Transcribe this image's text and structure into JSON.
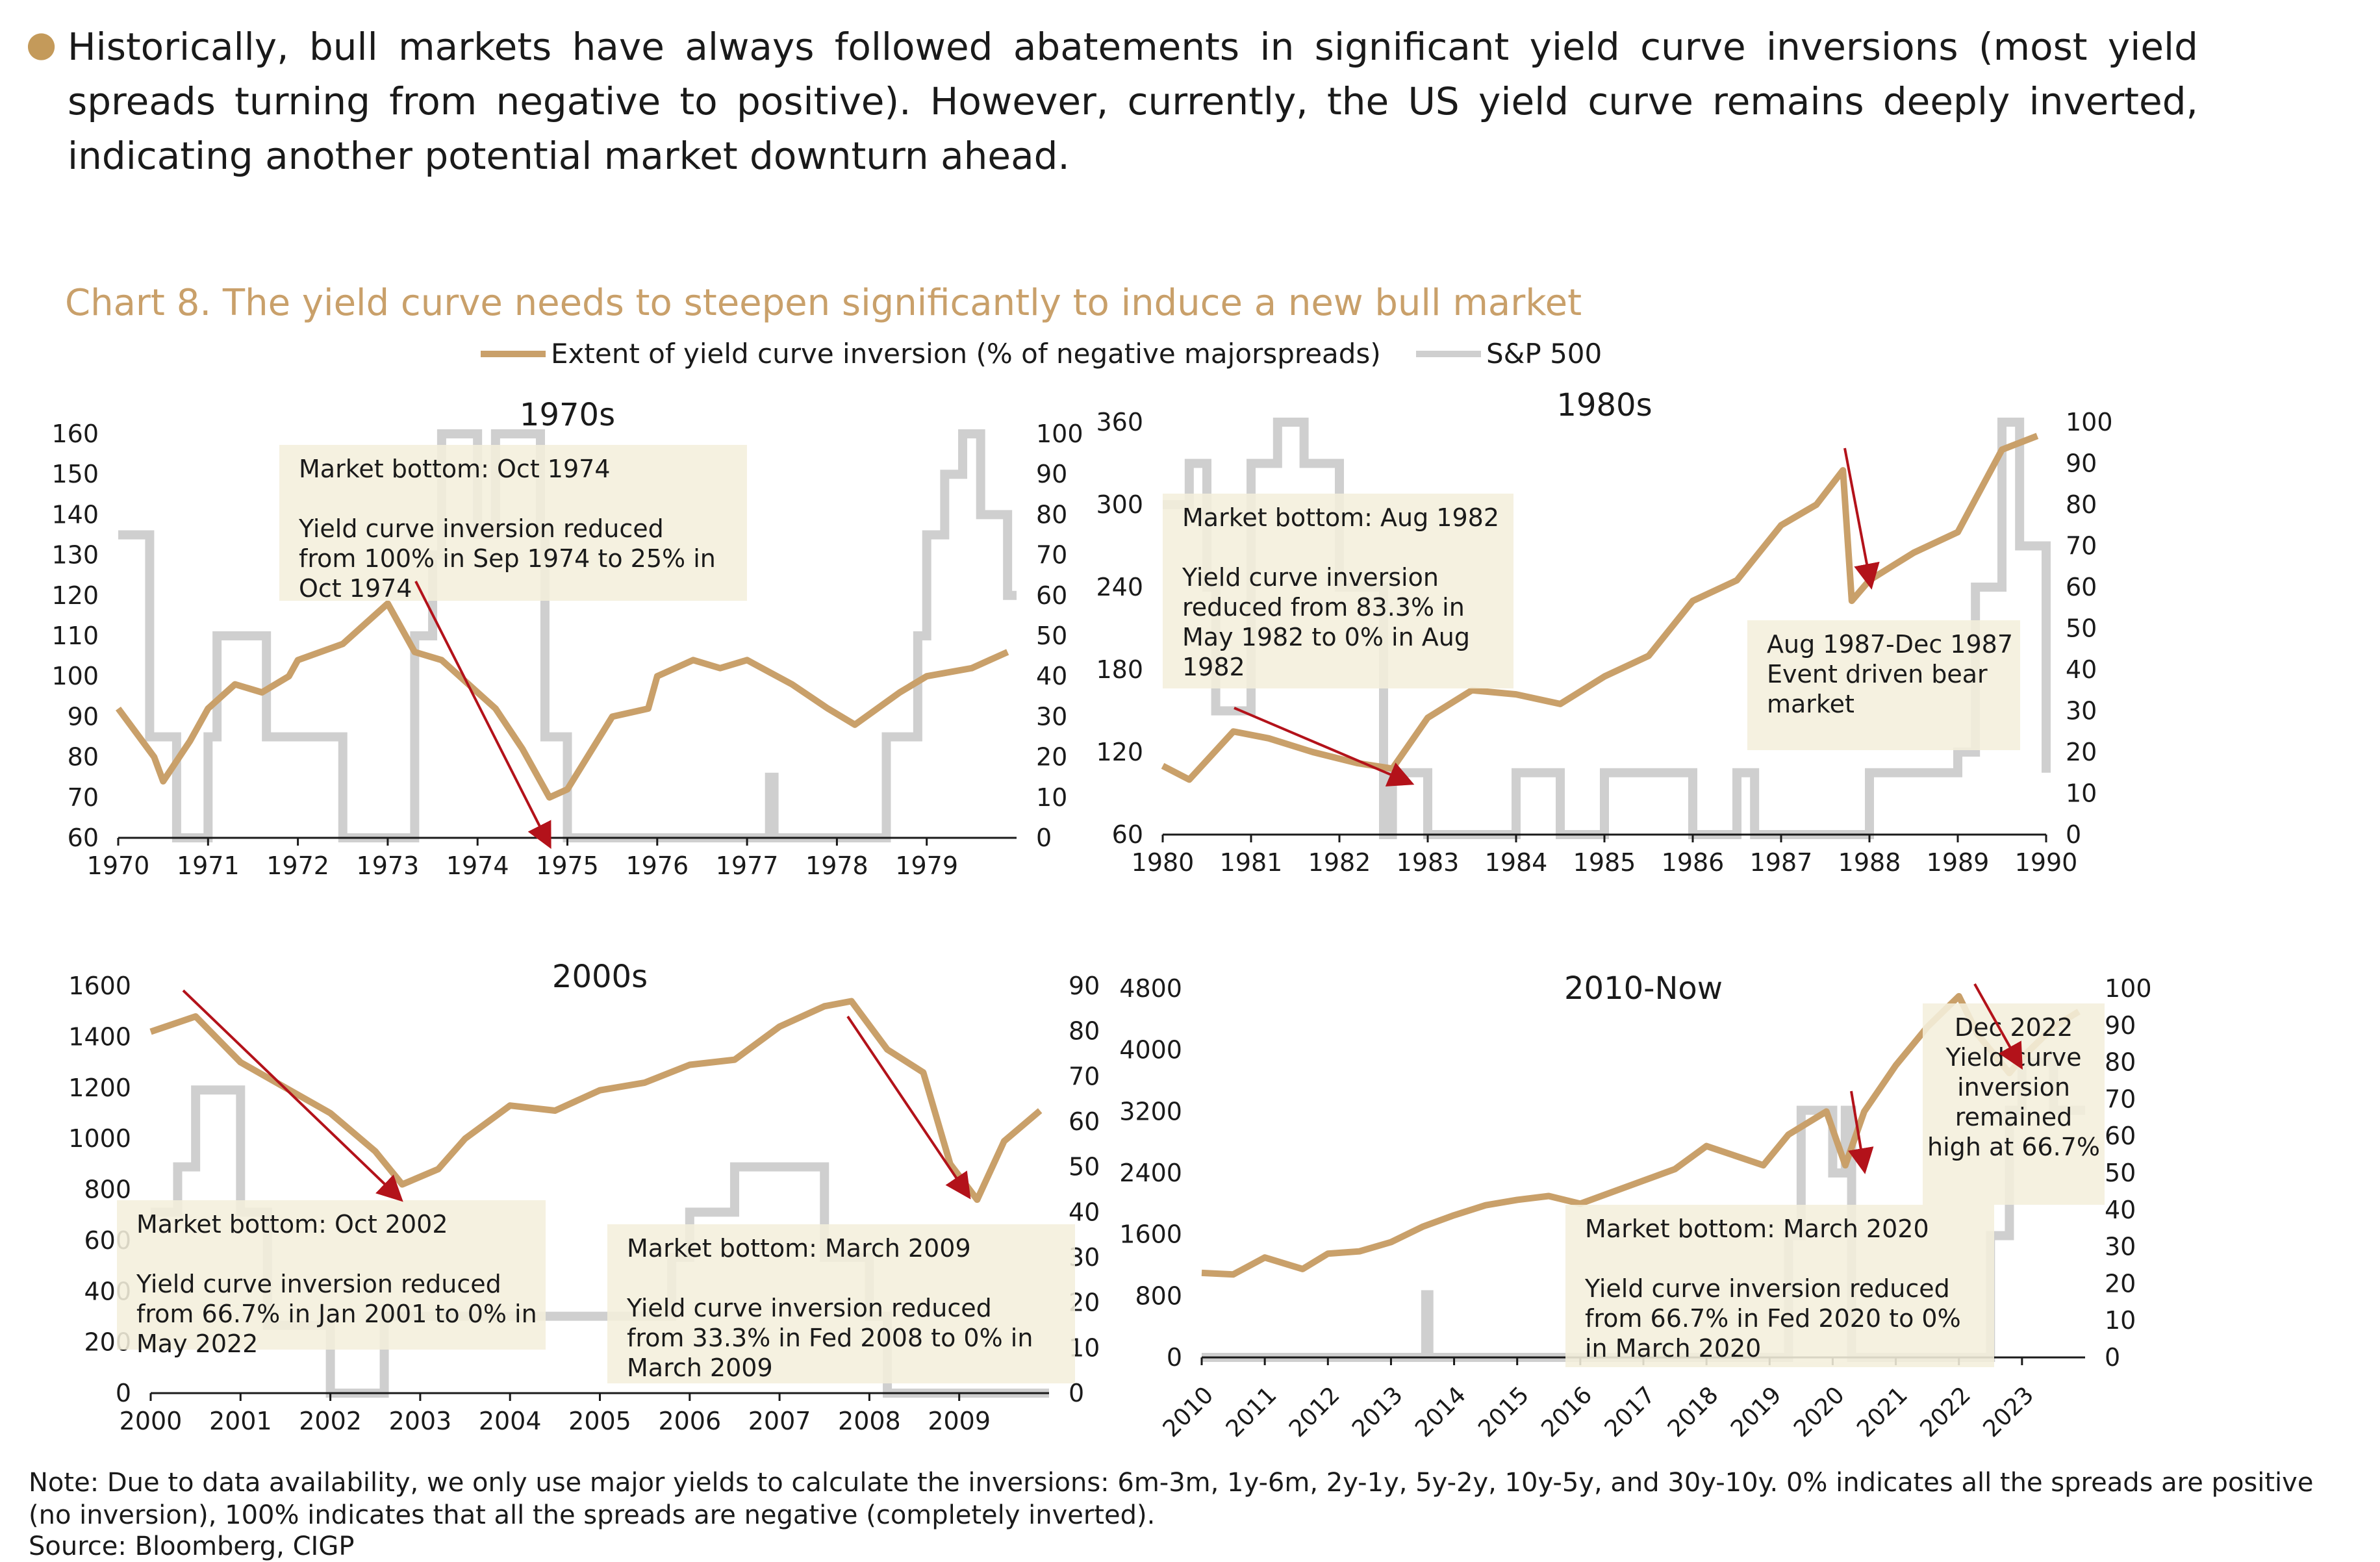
{
  "bullet": "Historically, bull markets have always followed abatements in significant yield curve inversions (most yield spreads turning from negative to positive). However, currently, the US yield curve remains deeply inverted, indicating another potential market downturn ahead.",
  "chart_title": "Chart 8. The yield curve needs to steepen significantly to induce a new bull market",
  "legend": {
    "yield_label": "Extent of yield curve inversion (% of negative majorspreads)",
    "sp_label": "S&P 500",
    "yield_color": "#c9a06a",
    "sp_color": "#cfcfcf"
  },
  "colors": {
    "annotation_bg": "#f4efdc",
    "arrow": "#b3121a",
    "axis": "#1a1a1a"
  },
  "note": "Note: Due to data availability, we only use major yields to calculate the inversions: 6m-3m, 1y-6m, 2y-1y, 5y-2y, 10y-5y, and 30y-10y. 0% indicates all the spreads are positive (no inversion), 100% indicates that all the spreads are negative (completely inverted).",
  "source": "Source: Bloomberg, CIGP",
  "chart_data": [
    {
      "type": "line",
      "title": "1970s",
      "x_tick_labels": [
        "1970",
        "1971",
        "1972",
        "1973",
        "1974",
        "1975",
        "1976",
        "1977",
        "1978",
        "1979"
      ],
      "xlim": [
        1970,
        1980
      ],
      "y_left": {
        "min": 60,
        "max": 160,
        "step": 10
      },
      "y_right": {
        "min": 0,
        "max": 100,
        "step": 10
      },
      "sp500": {
        "axis": "left",
        "x": [
          1970,
          1970.4,
          1970.5,
          1970.8,
          1971,
          1971.3,
          1971.6,
          1971.9,
          1972,
          1972.5,
          1973,
          1973.3,
          1973.6,
          1973.9,
          1974.2,
          1974.5,
          1974.8,
          1975,
          1975.5,
          1975.9,
          1976,
          1976.4,
          1976.7,
          1977,
          1977.5,
          1977.9,
          1978.2,
          1978.7,
          1979,
          1979.5,
          1979.9
        ],
        "values": [
          92,
          80,
          74,
          84,
          92,
          98,
          96,
          100,
          104,
          108,
          118,
          106,
          104,
          98,
          92,
          82,
          70,
          72,
          90,
          92,
          100,
          104,
          102,
          104,
          98,
          92,
          88,
          96,
          100,
          102,
          106
        ]
      },
      "inversion": {
        "axis": "right",
        "x": [
          1970,
          1970.3,
          1970.35,
          1970.6,
          1970.65,
          1971,
          1971.1,
          1971.6,
          1971.65,
          1972,
          1972.5,
          1973,
          1973.3,
          1973.5,
          1973.6,
          1974.0,
          1974.2,
          1974.7,
          1974.75,
          1975,
          1977.2,
          1977.25,
          1977.3,
          1978.5,
          1978.55,
          1978.9,
          1979.0,
          1979.2,
          1979.4,
          1979.6,
          1979.9
        ],
        "values": [
          75,
          75,
          25,
          25,
          0,
          25,
          50,
          50,
          25,
          25,
          0,
          0,
          50,
          70,
          100,
          75,
          100,
          75,
          25,
          0,
          0,
          15,
          0,
          0,
          25,
          50,
          75,
          90,
          100,
          80,
          60
        ]
      },
      "annotations": [
        {
          "lines": [
            "Market bottom: Oct 1974",
            "",
            "Yield curve inversion reduced",
            "from 100% in Sep 1974 to 25% in",
            "Oct 1974"
          ]
        }
      ]
    },
    {
      "type": "line",
      "title": "1980s",
      "x_tick_labels": [
        "1980",
        "1981",
        "1982",
        "1983",
        "1984",
        "1985",
        "1986",
        "1987",
        "1988",
        "1989",
        "1990"
      ],
      "xlim": [
        1980,
        1990
      ],
      "y_left": {
        "min": 60,
        "max": 360,
        "step": 60
      },
      "y_right": {
        "min": 0,
        "max": 100,
        "step": 10
      },
      "sp500": {
        "axis": "left",
        "x": [
          1980,
          1980.3,
          1980.8,
          1981.2,
          1981.7,
          1982.2,
          1982.6,
          1983,
          1983.5,
          1984,
          1984.5,
          1985,
          1985.5,
          1986,
          1986.5,
          1987,
          1987.4,
          1987.7,
          1987.8,
          1988,
          1988.5,
          1989,
          1989.5,
          1989.9
        ],
        "values": [
          110,
          100,
          135,
          130,
          120,
          112,
          108,
          145,
          165,
          162,
          155,
          175,
          190,
          230,
          245,
          285,
          300,
          325,
          230,
          245,
          265,
          280,
          340,
          350
        ]
      },
      "inversion": {
        "axis": "right",
        "x": [
          1980,
          1980.3,
          1980.5,
          1980.6,
          1981,
          1981.3,
          1981.6,
          1982,
          1982.5,
          1982.6,
          1983,
          1984,
          1984.5,
          1985,
          1986,
          1986.5,
          1986.7,
          1987,
          1988,
          1989,
          1989.2,
          1989.5,
          1989.7,
          1990
        ],
        "values": [
          80,
          90,
          60,
          30,
          90,
          100,
          90,
          60,
          0,
          15,
          0,
          15,
          0,
          15,
          0,
          15,
          0,
          0,
          15,
          20,
          60,
          100,
          70,
          15
        ]
      },
      "annotations": [
        {
          "lines": [
            "Market bottom: Aug 1982",
            "",
            "Yield curve inversion",
            "reduced from 83.3% in",
            "May 1982 to 0% in Aug",
            "1982"
          ]
        },
        {
          "lines": [
            "Aug 1987-Dec 1987",
            "Event driven bear",
            "market"
          ]
        }
      ]
    },
    {
      "type": "line",
      "title": "2000s",
      "x_tick_labels": [
        "2000",
        "2001",
        "2002",
        "2003",
        "2004",
        "2005",
        "2006",
        "2007",
        "2008",
        "2009"
      ],
      "xlim": [
        2000,
        2010
      ],
      "y_left": {
        "min": 0,
        "max": 1600,
        "step": 200
      },
      "y_right": {
        "min": 0,
        "max": 90,
        "step": 10
      },
      "sp500": {
        "axis": "left",
        "x": [
          2000,
          2000.5,
          2001,
          2001.5,
          2002,
          2002.5,
          2002.8,
          2003.2,
          2003.5,
          2004,
          2004.5,
          2005,
          2005.5,
          2006,
          2006.5,
          2007,
          2007.5,
          2007.8,
          2008.2,
          2008.6,
          2008.9,
          2009.2,
          2009.5,
          2009.9
        ],
        "values": [
          1420,
          1480,
          1300,
          1200,
          1100,
          950,
          820,
          880,
          1000,
          1130,
          1110,
          1190,
          1220,
          1290,
          1310,
          1440,
          1520,
          1540,
          1350,
          1260,
          900,
          760,
          990,
          1110
        ]
      },
      "inversion": {
        "axis": "right",
        "x": [
          2000,
          2000.3,
          2000.5,
          2000.8,
          2001,
          2001.3,
          2002,
          2002.5,
          2002.6,
          2005,
          2005.8,
          2006,
          2006.5,
          2007,
          2007.5,
          2008,
          2008.2,
          2010
        ],
        "values": [
          40,
          50,
          67,
          67,
          40,
          15,
          0,
          0,
          17,
          17,
          30,
          40,
          50,
          50,
          30,
          17,
          0,
          0
        ]
      },
      "annotations": [
        {
          "lines": [
            "Market bottom: Oct 2002",
            "",
            "Yield curve inversion reduced",
            "from 66.7% in Jan 2001 to 0% in",
            "May 2022"
          ]
        },
        {
          "lines": [
            "Market bottom: March 2009",
            "",
            "Yield curve inversion reduced",
            "from 33.3% in Fed 2008 to 0% in",
            "March 2009"
          ]
        }
      ]
    },
    {
      "type": "line",
      "title": "2010-Now",
      "x_tick_labels": [
        "2010",
        "2011",
        "2012",
        "2013",
        "2014",
        "2015",
        "2016",
        "2017",
        "2018",
        "2019",
        "2020",
        "2021",
        "2022",
        "2023"
      ],
      "xlim": [
        2010,
        2024
      ],
      "y_left": {
        "min": 0,
        "max": 4800,
        "step": 800
      },
      "y_right": {
        "min": 0,
        "max": 100,
        "step": 10
      },
      "sp500": {
        "axis": "left",
        "x": [
          2010,
          2010.5,
          2011,
          2011.6,
          2012,
          2012.5,
          2013,
          2013.5,
          2014,
          2014.5,
          2015,
          2015.5,
          2016,
          2016.5,
          2017,
          2017.5,
          2018,
          2018.9,
          2019.3,
          2019.9,
          2020.2,
          2020.5,
          2021,
          2021.5,
          2022,
          2022.3,
          2022.8,
          2023,
          2023.5,
          2023.9
        ],
        "values": [
          1100,
          1080,
          1300,
          1150,
          1350,
          1380,
          1500,
          1700,
          1850,
          1980,
          2050,
          2100,
          2000,
          2150,
          2300,
          2450,
          2750,
          2500,
          2900,
          3200,
          2500,
          3200,
          3800,
          4300,
          4700,
          4200,
          3700,
          3900,
          4300,
          4500
        ]
      },
      "inversion": {
        "axis": "right",
        "x": [
          2010,
          2013.5,
          2013.55,
          2013.6,
          2019.0,
          2019.3,
          2019.5,
          2020.0,
          2020.2,
          2020.3,
          2022.2,
          2022.5,
          2022.8,
          2023,
          2023.5,
          2023.9
        ],
        "values": [
          0,
          0,
          17,
          0,
          0,
          33,
          67,
          50,
          67,
          0,
          0,
          33,
          67,
          80,
          67,
          67
        ]
      },
      "annotations": [
        {
          "lines": [
            "Market bottom: March 2020",
            "",
            "Yield curve inversion reduced",
            "from 66.7% in Fed 2020 to 0%",
            "in March 2020"
          ]
        },
        {
          "lines": [
            "Dec 2022",
            "Yield curve",
            "inversion",
            "remained",
            "high at 66.7%"
          ]
        }
      ]
    }
  ]
}
